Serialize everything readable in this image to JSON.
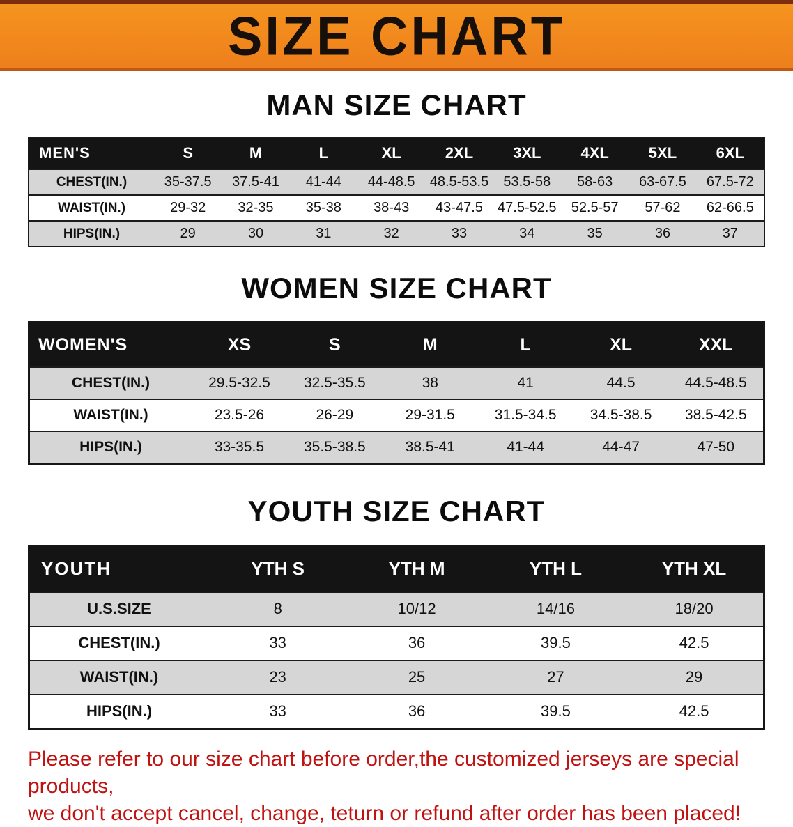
{
  "banner": {
    "title": "SIZE CHART"
  },
  "colors": {
    "banner_bg": "#f08124",
    "table_header_bg": "#141414",
    "row_stripe": "#d6d6d6",
    "notice_red": "#c11212"
  },
  "man": {
    "heading": "MAN SIZE CHART",
    "corner": "MEN'S",
    "cols": [
      "S",
      "M",
      "L",
      "XL",
      "2XL",
      "3XL",
      "4XL",
      "5XL",
      "6XL"
    ],
    "rows": [
      {
        "label": "CHEST(IN.)",
        "v": [
          "35-37.5",
          "37.5-41",
          "41-44",
          "44-48.5",
          "48.5-53.5",
          "53.5-58",
          "58-63",
          "63-67.5",
          "67.5-72"
        ]
      },
      {
        "label": "WAIST(IN.)",
        "v": [
          "29-32",
          "32-35",
          "35-38",
          "38-43",
          "43-47.5",
          "47.5-52.5",
          "52.5-57",
          "57-62",
          "62-66.5"
        ]
      },
      {
        "label": "HIPS(IN.)",
        "v": [
          "29",
          "30",
          "31",
          "32",
          "33",
          "34",
          "35",
          "36",
          "37"
        ]
      }
    ]
  },
  "women": {
    "heading": "WOMEN SIZE CHART",
    "corner": "WOMEN'S",
    "cols": [
      "XS",
      "S",
      "M",
      "L",
      "XL",
      "XXL"
    ],
    "rows": [
      {
        "label": "CHEST(IN.)",
        "v": [
          "29.5-32.5",
          "32.5-35.5",
          "38",
          "41",
          "44.5",
          "44.5-48.5"
        ]
      },
      {
        "label": "WAIST(IN.)",
        "v": [
          "23.5-26",
          "26-29",
          "29-31.5",
          "31.5-34.5",
          "34.5-38.5",
          "38.5-42.5"
        ]
      },
      {
        "label": "HIPS(IN.)",
        "v": [
          "33-35.5",
          "35.5-38.5",
          "38.5-41",
          "41-44",
          "44-47",
          "47-50"
        ]
      }
    ]
  },
  "youth": {
    "heading": "YOUTH SIZE CHART",
    "corner": "YOUTH",
    "cols": [
      "YTH S",
      "YTH M",
      "YTH L",
      "YTH XL"
    ],
    "rows": [
      {
        "label": "U.S.SIZE",
        "v": [
          "8",
          "10/12",
          "14/16",
          "18/20"
        ]
      },
      {
        "label": "CHEST(IN.)",
        "v": [
          "33",
          "36",
          "39.5",
          "42.5"
        ]
      },
      {
        "label": "WAIST(IN.)",
        "v": [
          "23",
          "25",
          "27",
          "29"
        ]
      },
      {
        "label": "HIPS(IN.)",
        "v": [
          "33",
          "36",
          "39.5",
          "42.5"
        ]
      }
    ]
  },
  "notice": {
    "line1": "Please refer to our size chart before order,the customized jerseys are special products,",
    "line2": "we don't accept cancel, change, teturn or refund after order has been placed!"
  }
}
